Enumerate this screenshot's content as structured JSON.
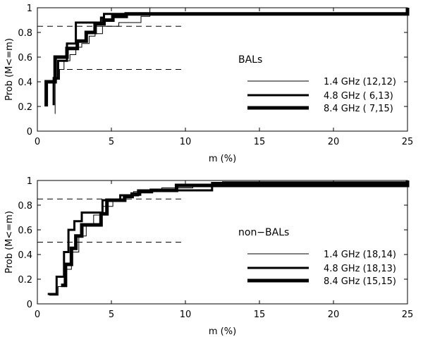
{
  "chart_data": [
    {
      "type": "line",
      "subtype": "step-cdf",
      "annotation": "BALs",
      "xlabel": "m (%)",
      "ylabel": "Prob (M<=m)",
      "xlim": [
        0,
        25
      ],
      "ylim": [
        0,
        1
      ],
      "xticks": [
        "0",
        "5",
        "10",
        "15",
        "20",
        "25"
      ],
      "yticks": [
        "0",
        "0.2",
        "0.4",
        "0.6",
        "0.8",
        "1"
      ],
      "reference_lines": [
        {
          "y": 0.85,
          "x_from": 0,
          "x_to": 10
        },
        {
          "y": 0.5,
          "x_from": 2,
          "x_to": 10
        }
      ],
      "legend_position": "center-right",
      "series": [
        {
          "name": "1.4 GHz (12,12)",
          "weight": "thin",
          "x": [
            1.2,
            1.2,
            1.5,
            1.8,
            2.2,
            2.6,
            3.0,
            3.5,
            3.9,
            4.4,
            5.5,
            7.0,
            7.6,
            7.6,
            25.0
          ],
          "y": [
            0.14,
            0.42,
            0.5,
            0.57,
            0.62,
            0.68,
            0.71,
            0.77,
            0.79,
            0.85,
            0.88,
            0.93,
            0.95,
            1.0,
            1.0
          ]
        },
        {
          "name": "4.8 GHz ( 6,13)",
          "weight": "medium",
          "x": [
            1.1,
            1.1,
            1.4,
            2.0,
            2.6,
            3.7,
            4.3,
            4.5,
            25.0
          ],
          "y": [
            0.21,
            0.43,
            0.57,
            0.71,
            0.88,
            0.88,
            0.92,
            0.95,
            1.0
          ]
        },
        {
          "name": "8.4 GHz ( 7,15)",
          "weight": "thick",
          "x": [
            0.6,
            0.6,
            1.2,
            2.0,
            2.7,
            3.3,
            3.9,
            4.5,
            5.1,
            6.0,
            17.8,
            25.0
          ],
          "y": [
            0.2,
            0.4,
            0.6,
            0.67,
            0.73,
            0.8,
            0.87,
            0.9,
            0.93,
            0.95,
            0.95,
            1.0
          ]
        }
      ]
    },
    {
      "type": "line",
      "subtype": "step-cdf",
      "annotation": "non−BALs",
      "xlabel": "m (%)",
      "ylabel": "Prob (M<=m)",
      "xlim": [
        0,
        25
      ],
      "ylim": [
        0,
        1
      ],
      "xticks": [
        "0",
        "5",
        "10",
        "15",
        "20",
        "25"
      ],
      "yticks": [
        "0",
        "0.2",
        "0.4",
        "0.6",
        "0.8",
        "1"
      ],
      "reference_lines": [
        {
          "y": 0.85,
          "x_from": 0,
          "x_to": 10
        },
        {
          "y": 0.5,
          "x_from": 0,
          "x_to": 10
        }
      ],
      "legend_position": "center-right",
      "series": [
        {
          "name": "1.4 GHz (18,14)",
          "weight": "thin",
          "x": [
            0.8,
            1.4,
            1.9,
            2.3,
            2.8,
            3.3,
            3.8,
            4.4,
            5.1,
            5.8,
            6.5,
            7.2,
            8.4,
            10.5,
            12.5,
            25.0
          ],
          "y": [
            0.07,
            0.14,
            0.28,
            0.42,
            0.55,
            0.64,
            0.72,
            0.79,
            0.84,
            0.88,
            0.91,
            0.92,
            0.94,
            0.96,
            0.99,
            1.0
          ]
        },
        {
          "name": "4.8 GHz (18,13)",
          "weight": "medium",
          "x": [
            0.7,
            1.3,
            1.8,
            2.1,
            2.5,
            3.0,
            3.6,
            4.4,
            4.9,
            5.6,
            6.4,
            6.8,
            8.7,
            11.8,
            25.0
          ],
          "y": [
            0.08,
            0.22,
            0.42,
            0.6,
            0.67,
            0.74,
            0.74,
            0.84,
            0.84,
            0.88,
            0.88,
            0.92,
            0.92,
            0.98,
            1.0
          ]
        },
        {
          "name": "8.4 GHz (15,15)",
          "weight": "thick",
          "x": [
            1.6,
            1.9,
            2.3,
            2.6,
            3.0,
            3.6,
            4.3,
            4.7,
            5.4,
            5.9,
            6.4,
            6.9,
            7.7,
            9.4,
            25.0
          ],
          "y": [
            0.15,
            0.32,
            0.45,
            0.55,
            0.64,
            0.64,
            0.73,
            0.84,
            0.84,
            0.87,
            0.89,
            0.91,
            0.92,
            0.96,
            1.0
          ]
        }
      ]
    }
  ]
}
